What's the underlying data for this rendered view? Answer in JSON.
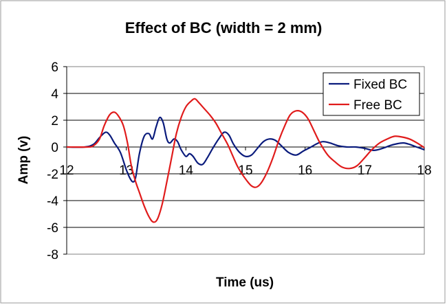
{
  "chart_data": {
    "type": "line",
    "title": "Effect of BC (width = 2 mm)",
    "xlabel": "Time (us)",
    "ylabel": "Amp (v)",
    "xlim": [
      12,
      18
    ],
    "ylim": [
      -8,
      6
    ],
    "x_ticks": [
      12,
      13,
      14,
      15,
      16,
      17,
      18
    ],
    "y_ticks": [
      -8,
      -6,
      -4,
      -2,
      0,
      2,
      4,
      6
    ],
    "grid": "horizontal",
    "legend_position": "top-right",
    "series": [
      {
        "name": "Fixed BC",
        "color": "#0a1b7c",
        "points": [
          [
            12.0,
            0
          ],
          [
            12.3,
            0
          ],
          [
            12.45,
            0.2
          ],
          [
            12.55,
            0.7
          ],
          [
            12.65,
            1.1
          ],
          [
            12.72,
            0.9
          ],
          [
            12.8,
            0.3
          ],
          [
            12.9,
            -0.4
          ],
          [
            13.0,
            -1.7
          ],
          [
            13.07,
            -2.4
          ],
          [
            13.12,
            -2.6
          ],
          [
            13.16,
            -2.2
          ],
          [
            13.22,
            -0.5
          ],
          [
            13.3,
            0.8
          ],
          [
            13.38,
            1.0
          ],
          [
            13.44,
            0.6
          ],
          [
            13.5,
            1.5
          ],
          [
            13.56,
            2.2
          ],
          [
            13.62,
            1.8
          ],
          [
            13.68,
            0.6
          ],
          [
            13.73,
            0.3
          ],
          [
            13.8,
            0.6
          ],
          [
            13.86,
            0.4
          ],
          [
            13.92,
            -0.2
          ],
          [
            14.0,
            -0.7
          ],
          [
            14.06,
            -0.5
          ],
          [
            14.12,
            -0.7
          ],
          [
            14.2,
            -1.2
          ],
          [
            14.28,
            -1.3
          ],
          [
            14.36,
            -0.8
          ],
          [
            14.45,
            -0.1
          ],
          [
            14.55,
            0.6
          ],
          [
            14.64,
            1.1
          ],
          [
            14.72,
            0.9
          ],
          [
            14.8,
            0.2
          ],
          [
            14.9,
            -0.4
          ],
          [
            15.0,
            -0.7
          ],
          [
            15.1,
            -0.6
          ],
          [
            15.2,
            -0.1
          ],
          [
            15.3,
            0.4
          ],
          [
            15.4,
            0.6
          ],
          [
            15.5,
            0.5
          ],
          [
            15.6,
            0.1
          ],
          [
            15.72,
            -0.4
          ],
          [
            15.85,
            -0.6
          ],
          [
            15.97,
            -0.3
          ],
          [
            16.1,
            0.0
          ],
          [
            16.2,
            0.25
          ],
          [
            16.3,
            0.4
          ],
          [
            16.42,
            0.3
          ],
          [
            16.55,
            0.1
          ],
          [
            16.7,
            0.0
          ],
          [
            16.85,
            0.0
          ],
          [
            17.0,
            -0.1
          ],
          [
            17.15,
            -0.25
          ],
          [
            17.3,
            -0.1
          ],
          [
            17.42,
            0.1
          ],
          [
            17.55,
            0.25
          ],
          [
            17.65,
            0.3
          ],
          [
            17.75,
            0.2
          ],
          [
            17.87,
            0.0
          ],
          [
            18.0,
            -0.2
          ]
        ]
      },
      {
        "name": "Free BC",
        "color": "#e01b1b",
        "points": [
          [
            12.0,
            0
          ],
          [
            12.35,
            0
          ],
          [
            12.45,
            0.1
          ],
          [
            12.55,
            0.6
          ],
          [
            12.63,
            1.6
          ],
          [
            12.72,
            2.4
          ],
          [
            12.8,
            2.6
          ],
          [
            12.87,
            2.3
          ],
          [
            12.95,
            1.6
          ],
          [
            13.02,
            0.3
          ],
          [
            13.08,
            -1.3
          ],
          [
            13.15,
            -2.5
          ],
          [
            13.22,
            -3.4
          ],
          [
            13.3,
            -4.4
          ],
          [
            13.38,
            -5.2
          ],
          [
            13.45,
            -5.6
          ],
          [
            13.52,
            -5.4
          ],
          [
            13.6,
            -4.3
          ],
          [
            13.68,
            -2.6
          ],
          [
            13.76,
            -0.8
          ],
          [
            13.84,
            1.0
          ],
          [
            13.92,
            2.2
          ],
          [
            14.0,
            3.0
          ],
          [
            14.08,
            3.4
          ],
          [
            14.15,
            3.6
          ],
          [
            14.22,
            3.3
          ],
          [
            14.3,
            2.9
          ],
          [
            14.4,
            2.4
          ],
          [
            14.5,
            1.8
          ],
          [
            14.6,
            1.0
          ],
          [
            14.7,
            0.2
          ],
          [
            14.78,
            -0.6
          ],
          [
            14.86,
            -1.4
          ],
          [
            14.94,
            -2.0
          ],
          [
            15.02,
            -2.5
          ],
          [
            15.1,
            -2.9
          ],
          [
            15.18,
            -3.0
          ],
          [
            15.26,
            -2.7
          ],
          [
            15.36,
            -1.9
          ],
          [
            15.46,
            -0.8
          ],
          [
            15.56,
            0.5
          ],
          [
            15.66,
            1.6
          ],
          [
            15.75,
            2.4
          ],
          [
            15.85,
            2.7
          ],
          [
            15.95,
            2.6
          ],
          [
            16.05,
            2.1
          ],
          [
            16.15,
            1.2
          ],
          [
            16.25,
            0.3
          ],
          [
            16.38,
            -0.6
          ],
          [
            16.5,
            -1.1
          ],
          [
            16.62,
            -1.5
          ],
          [
            16.75,
            -1.6
          ],
          [
            16.87,
            -1.4
          ],
          [
            17.0,
            -0.8
          ],
          [
            17.12,
            -0.2
          ],
          [
            17.25,
            0.3
          ],
          [
            17.38,
            0.6
          ],
          [
            17.5,
            0.8
          ],
          [
            17.62,
            0.75
          ],
          [
            17.75,
            0.6
          ],
          [
            17.88,
            0.3
          ],
          [
            18.0,
            -0.05
          ]
        ]
      }
    ]
  }
}
